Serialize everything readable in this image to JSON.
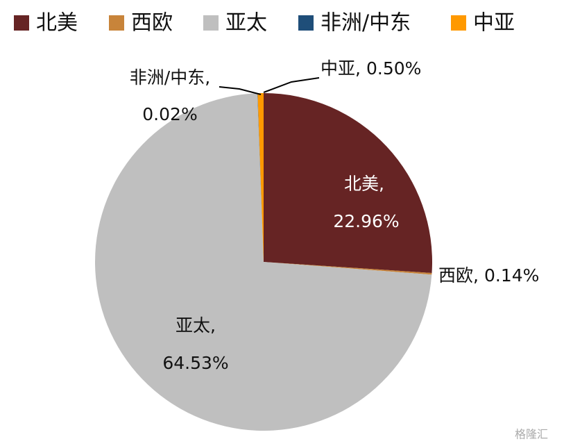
{
  "chart_data": {
    "type": "pie",
    "categories": [
      "北美",
      "西欧",
      "亚太",
      "非洲/中东",
      "中亚"
    ],
    "values": [
      22.96,
      0.14,
      64.53,
      0.02,
      0.5
    ],
    "value_labels": [
      "22.96%",
      "0.14%",
      "64.53%",
      "0.02%",
      "0.50%"
    ],
    "label_separator": ",",
    "colors": [
      "#662424",
      "#c8843a",
      "#bfbfbf",
      "#1f4e79",
      "#ff9900"
    ],
    "legend": "top",
    "watermark": "格隆汇"
  }
}
